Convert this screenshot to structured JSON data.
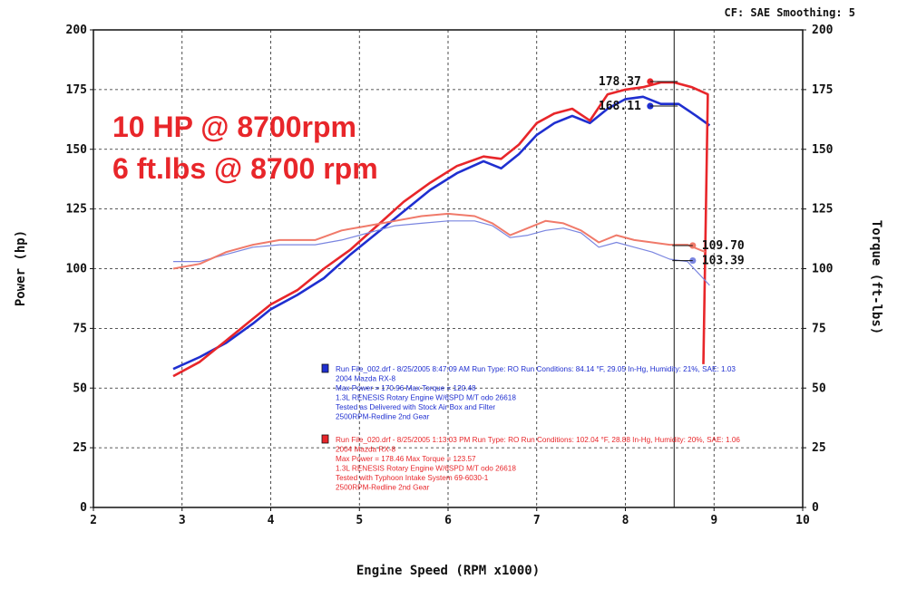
{
  "header": {
    "cf_label": "CF: SAE  Smoothing: 5"
  },
  "headline": {
    "line1": "10 HP @ 8700rpm",
    "line2": "6 ft.lbs @ 8700 rpm",
    "color": "#e8262a"
  },
  "chart_data": {
    "type": "line",
    "xlabel": "Engine Speed (RPM x1000)",
    "ylabel_left": "Power (hp)",
    "ylabel_right": "Torque (ft-lbs)",
    "xlim": [
      2,
      10
    ],
    "ylim": [
      0,
      200
    ],
    "x_ticks": [
      "2",
      "3",
      "4",
      "5",
      "6",
      "7",
      "8",
      "9",
      "10"
    ],
    "y_ticks": [
      "0",
      "25",
      "50",
      "75",
      "100",
      "125",
      "150",
      "175",
      "200"
    ],
    "grid": true,
    "cursor_rpm": 8.55,
    "callouts": [
      {
        "label": "178.37",
        "series": "run_020_power",
        "x": 8.28,
        "y": 178.37,
        "color": "#e8262a"
      },
      {
        "label": "168.11",
        "series": "run_002_power",
        "x": 8.28,
        "y": 168.11,
        "color": "#1f2fd0"
      },
      {
        "label": "109.70",
        "series": "run_020_torque",
        "x": 8.76,
        "y": 109.7,
        "color": "#f07a6a"
      },
      {
        "label": "103.39",
        "series": "run_002_torque",
        "x": 8.76,
        "y": 103.39,
        "color": "#7a85e0"
      }
    ],
    "series": [
      {
        "id": "run_002_power",
        "color": "#1f2fd0",
        "width": 2.6,
        "x": [
          2.9,
          3.2,
          3.5,
          3.8,
          4.0,
          4.3,
          4.6,
          4.9,
          5.2,
          5.5,
          5.8,
          6.1,
          6.4,
          6.6,
          6.8,
          7.0,
          7.2,
          7.4,
          7.6,
          7.8,
          8.0,
          8.2,
          8.4,
          8.6,
          8.8,
          8.95
        ],
        "y": [
          58,
          63,
          69,
          77,
          83,
          89,
          96,
          106,
          115,
          124,
          133,
          140,
          145,
          142,
          148,
          156,
          161,
          164,
          161,
          167,
          171,
          172,
          169,
          169,
          164,
          160
        ]
      },
      {
        "id": "run_020_power",
        "color": "#e8262a",
        "width": 2.6,
        "x": [
          2.9,
          3.2,
          3.5,
          3.8,
          4.0,
          4.3,
          4.6,
          4.9,
          5.2,
          5.5,
          5.8,
          6.1,
          6.4,
          6.6,
          6.8,
          7.0,
          7.2,
          7.4,
          7.6,
          7.8,
          8.0,
          8.2,
          8.4,
          8.55,
          8.75,
          8.93,
          8.88
        ],
        "y": [
          55,
          61,
          70,
          79,
          85,
          91,
          100,
          108,
          118,
          128,
          136,
          143,
          147,
          146,
          152,
          161,
          165,
          167,
          162,
          173,
          175,
          176,
          178,
          178,
          176,
          173,
          60
        ]
      },
      {
        "id": "run_002_torque",
        "color": "#7a85e0",
        "width": 1.2,
        "x": [
          2.9,
          3.2,
          3.5,
          3.8,
          4.1,
          4.5,
          4.8,
          5.1,
          5.4,
          5.7,
          6.0,
          6.3,
          6.5,
          6.7,
          6.9,
          7.1,
          7.3,
          7.5,
          7.7,
          7.9,
          8.1,
          8.3,
          8.5,
          8.7,
          8.95
        ],
        "y": [
          103,
          103,
          106,
          109,
          110,
          110,
          112,
          115,
          118,
          119,
          120,
          120,
          118,
          113,
          114,
          116,
          117,
          115,
          109,
          111,
          109,
          107,
          104,
          103,
          93
        ]
      },
      {
        "id": "run_020_torque",
        "color": "#f07a6a",
        "width": 2.0,
        "x": [
          2.9,
          3.2,
          3.5,
          3.8,
          4.1,
          4.5,
          4.8,
          5.1,
          5.4,
          5.7,
          6.0,
          6.3,
          6.5,
          6.7,
          6.9,
          7.1,
          7.3,
          7.5,
          7.7,
          7.9,
          8.1,
          8.3,
          8.5,
          8.7,
          8.9
        ],
        "y": [
          100,
          102,
          107,
          110,
          112,
          112,
          116,
          118,
          120,
          122,
          123,
          122,
          119,
          114,
          117,
          120,
          119,
          116,
          111,
          114,
          112,
          111,
          110,
          110,
          107
        ]
      }
    ],
    "legend": [
      {
        "color": "#1f2fd0",
        "lines": [
          "Run File_002.drf - 8/25/2005 8:47:09 AM   Run Type: RO   Run Conditions: 84.14 °F, 29.05 In-Hg,  Humidity: 21%, SAE: 1.03",
          "2004 Mazda RX-8",
          "Max Power = 170.96  Max Torque = 120.48",
          "1.3L RENESIS Rotary Engine W/6SPD M/T odo 26618",
          "Tested as Delivered with Stock Air Box and Filter",
          "2500RPM-Redline 2nd Gear"
        ]
      },
      {
        "color": "#e8262a",
        "lines": [
          "Run File_020.drf - 8/25/2005 1:13:03 PM   Run Type: RO   Run Conditions: 102.04 °F, 28.88 In-Hg,  Humidity: 20%, SAE: 1.06",
          "2004 Mazda RX-8",
          "Max Power = 178.46  Max Torque = 123.57",
          "1.3L RENESIS Rotary Engine W/6SPD M/T odo 26618",
          "Tested with Typhoon Intake System 69-6030-1",
          "2500RPM-Redline 2nd Gear"
        ]
      }
    ]
  }
}
